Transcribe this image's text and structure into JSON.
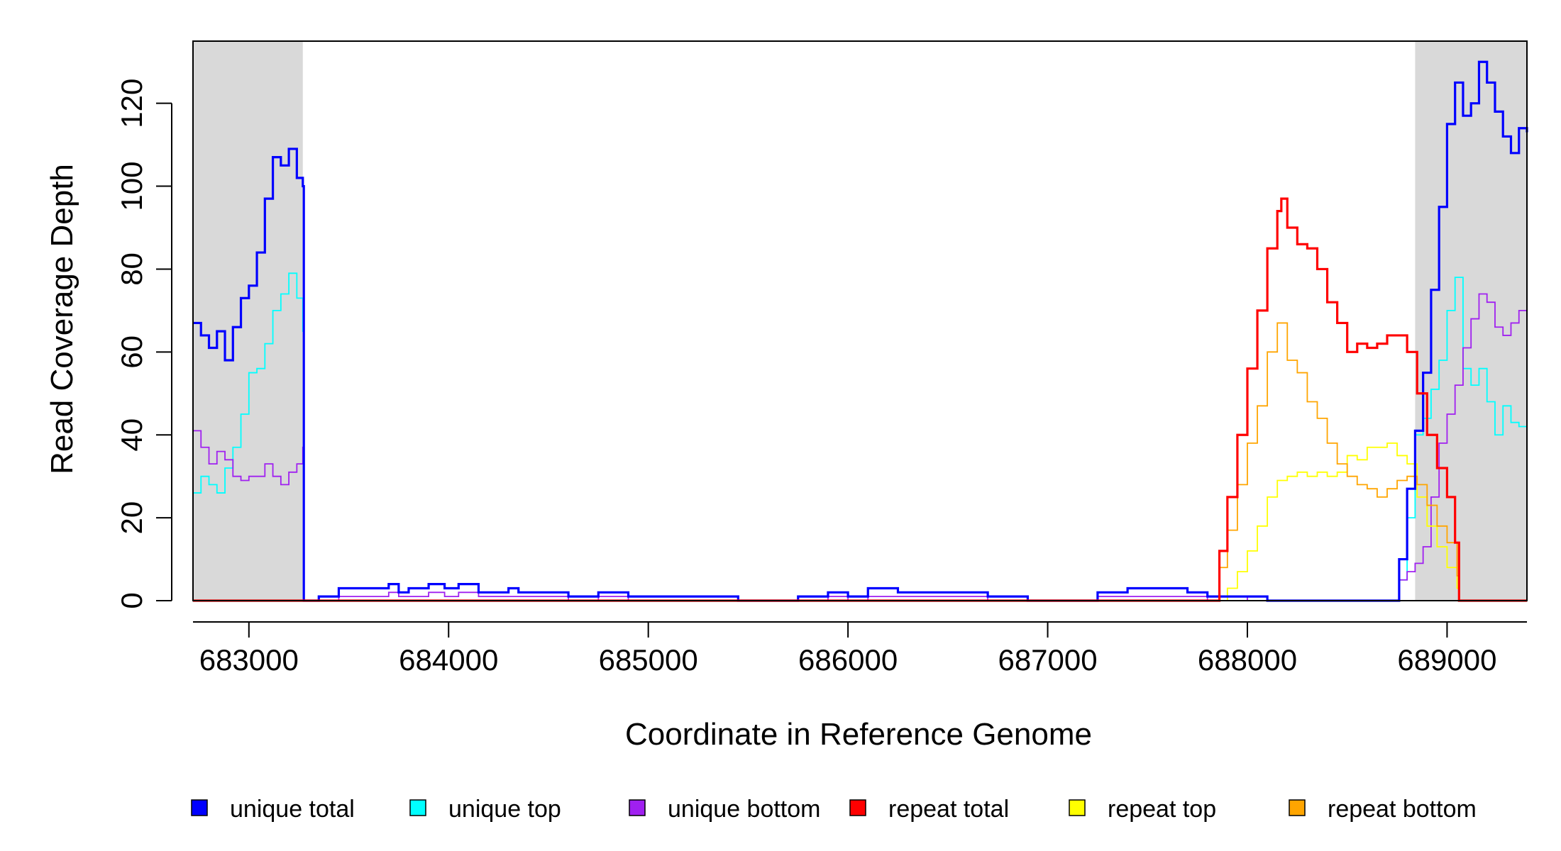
{
  "chart_data": {
    "type": "line",
    "title": "",
    "xlabel": "Coordinate in Reference Genome",
    "ylabel": "Read Coverage Depth",
    "xlim": [
      682720,
      689400
    ],
    "ylim": [
      0,
      135
    ],
    "x_ticks": [
      683000,
      684000,
      685000,
      686000,
      687000,
      688000,
      689000
    ],
    "x_tick_labels": [
      "683000",
      "684000",
      "685000",
      "686000",
      "687000",
      "688000",
      "689000"
    ],
    "y_ticks": [
      0,
      20,
      40,
      60,
      80,
      100,
      120
    ],
    "y_tick_labels": [
      "0",
      "20",
      "40",
      "60",
      "80",
      "100",
      "120"
    ],
    "shaded_regions": [
      [
        682720,
        683270
      ],
      [
        688840,
        689400
      ]
    ],
    "shade_color": "#d9d9d9",
    "grid": false,
    "legend_position": "bottom",
    "series": [
      {
        "name": "unique total",
        "color": "#0000ff",
        "weight": "thick",
        "x": [
          682720,
          682760,
          682800,
          682840,
          682880,
          682920,
          682960,
          683000,
          683040,
          683080,
          683120,
          683160,
          683200,
          683240,
          683270,
          683275,
          683350,
          683450,
          683600,
          683700,
          683750,
          683800,
          683900,
          683980,
          684050,
          684150,
          684300,
          684350,
          684400,
          684600,
          684750,
          684900,
          685150,
          685450,
          685750,
          685900,
          686000,
          686100,
          686250,
          686350,
          686500,
          686700,
          686900,
          687000,
          687250,
          687400,
          687600,
          687700,
          687800,
          688000,
          688100,
          688700,
          688760,
          688800,
          688840,
          688880,
          688920,
          688960,
          689000,
          689040,
          689080,
          689120,
          689160,
          689200,
          689240,
          689280,
          689320,
          689360,
          689400
        ],
        "y": [
          67,
          64,
          61,
          65,
          58,
          66,
          73,
          76,
          84,
          97,
          107,
          105,
          109,
          102,
          100,
          0,
          1,
          3,
          3,
          4,
          2,
          3,
          4,
          3,
          4,
          2,
          3,
          2,
          2,
          1,
          2,
          1,
          1,
          0,
          1,
          2,
          1,
          3,
          2,
          2,
          2,
          1,
          0,
          0,
          2,
          3,
          3,
          2,
          1,
          1,
          0,
          0,
          10,
          27,
          41,
          55,
          75,
          95,
          115,
          125,
          117,
          120,
          130,
          125,
          118,
          112,
          108,
          114,
          113
        ]
      },
      {
        "name": "unique top",
        "color": "#00ffff",
        "weight": "thin",
        "x": [
          682720,
          682760,
          682800,
          682840,
          682880,
          682920,
          682960,
          683000,
          683040,
          683080,
          683120,
          683160,
          683200,
          683240,
          683270,
          683275,
          683350,
          683450,
          683600,
          683700,
          683750,
          683800,
          683900,
          683980,
          684050,
          684150,
          684300,
          684350,
          684400,
          684600,
          684750,
          684900,
          685150,
          685450,
          685750,
          685900,
          686000,
          686100,
          686250,
          686350,
          686500,
          686700,
          686900,
          687000,
          687250,
          687400,
          687600,
          687700,
          687800,
          688000,
          688100,
          688700,
          688760,
          688800,
          688840,
          688880,
          688920,
          688960,
          689000,
          689040,
          689080,
          689120,
          689160,
          689200,
          689240,
          689280,
          689320,
          689360,
          689400
        ],
        "y": [
          26,
          30,
          28,
          26,
          32,
          37,
          45,
          55,
          56,
          62,
          70,
          74,
          79,
          73,
          65,
          0,
          1,
          3,
          3,
          4,
          2,
          3,
          4,
          3,
          4,
          2,
          3,
          2,
          2,
          1,
          2,
          1,
          1,
          0,
          1,
          2,
          1,
          3,
          2,
          2,
          2,
          1,
          0,
          0,
          2,
          3,
          3,
          2,
          1,
          1,
          0,
          0,
          5,
          20,
          40,
          44,
          51,
          58,
          70,
          78,
          56,
          52,
          56,
          48,
          40,
          47,
          43,
          42,
          45
        ]
      },
      {
        "name": "unique bottom",
        "color": "#a020f0",
        "weight": "thin",
        "x": [
          682720,
          682760,
          682800,
          682840,
          682880,
          682920,
          682960,
          683000,
          683040,
          683080,
          683120,
          683160,
          683200,
          683240,
          683270,
          683275,
          683350,
          683450,
          683600,
          683700,
          683750,
          683800,
          683900,
          683980,
          684050,
          684150,
          684300,
          684350,
          684400,
          684600,
          684750,
          684900,
          685150,
          685450,
          685750,
          685900,
          686000,
          686100,
          686250,
          686350,
          686500,
          686700,
          686900,
          687000,
          687250,
          687400,
          687600,
          687700,
          687800,
          688000,
          688100,
          688700,
          688760,
          688800,
          688840,
          688880,
          688920,
          688960,
          689000,
          689040,
          689080,
          689120,
          689160,
          689200,
          689240,
          689280,
          689320,
          689360,
          689400
        ],
        "y": [
          41,
          37,
          33,
          36,
          34,
          30,
          29,
          30,
          30,
          33,
          30,
          28,
          31,
          33,
          37,
          0,
          0,
          1,
          1,
          2,
          1,
          1,
          2,
          1,
          2,
          1,
          1,
          1,
          1,
          0,
          1,
          0,
          0,
          0,
          0,
          1,
          0,
          1,
          1,
          1,
          1,
          0,
          0,
          0,
          1,
          1,
          1,
          1,
          0,
          1,
          0,
          0,
          5,
          7,
          9,
          13,
          25,
          38,
          45,
          52,
          61,
          68,
          74,
          72,
          66,
          64,
          67,
          70,
          68
        ]
      },
      {
        "name": "repeat total",
        "color": "#ff0000",
        "weight": "thick",
        "x": [
          682720,
          687850,
          687860,
          687900,
          687950,
          688000,
          688050,
          688100,
          688150,
          688170,
          688200,
          688250,
          688300,
          688350,
          688400,
          688450,
          688500,
          688550,
          688600,
          688650,
          688700,
          688750,
          688800,
          688850,
          688900,
          688950,
          689000,
          689040,
          689060,
          689400
        ],
        "y": [
          0,
          0,
          12,
          25,
          40,
          56,
          70,
          85,
          94,
          97,
          90,
          86,
          85,
          80,
          72,
          67,
          60,
          62,
          61,
          62,
          64,
          64,
          60,
          50,
          40,
          32,
          25,
          14,
          0,
          0
        ]
      },
      {
        "name": "repeat top",
        "color": "#ffff00",
        "weight": "thin",
        "x": [
          682720,
          687850,
          687900,
          687950,
          688000,
          688050,
          688100,
          688150,
          688200,
          688250,
          688300,
          688350,
          688400,
          688450,
          688500,
          688550,
          688600,
          688650,
          688700,
          688750,
          688800,
          688850,
          688900,
          688950,
          689000,
          689050,
          689060,
          689400
        ],
        "y": [
          0,
          0,
          3,
          7,
          12,
          18,
          25,
          29,
          30,
          31,
          30,
          31,
          30,
          31,
          35,
          34,
          37,
          37,
          38,
          35,
          33,
          25,
          18,
          13,
          8,
          3,
          0,
          0
        ]
      },
      {
        "name": "repeat bottom",
        "color": "#ffa500",
        "weight": "thin",
        "x": [
          682720,
          687850,
          687860,
          687900,
          687950,
          688000,
          688050,
          688100,
          688150,
          688200,
          688250,
          688300,
          688350,
          688400,
          688450,
          688500,
          688550,
          688600,
          688650,
          688700,
          688750,
          688800,
          688850,
          688900,
          688950,
          689000,
          689050,
          689060,
          689400
        ],
        "y": [
          0,
          0,
          8,
          17,
          28,
          38,
          47,
          60,
          67,
          58,
          55,
          48,
          44,
          38,
          33,
          30,
          28,
          27,
          25,
          27,
          29,
          30,
          28,
          23,
          18,
          14,
          6,
          0,
          0
        ]
      }
    ]
  }
}
